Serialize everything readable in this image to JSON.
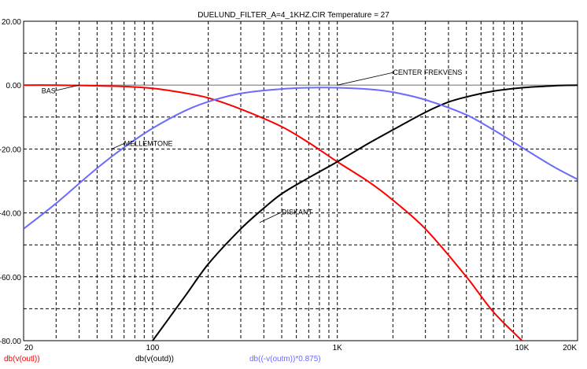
{
  "chart_data": {
    "type": "line",
    "title": "DUELUND_FILTER_A=4_1KHZ.CIR Temperature = 27",
    "x_scale": "log",
    "xlim": [
      20,
      20000
    ],
    "ylim": [
      -80,
      20
    ],
    "x_ticks": [
      {
        "value": 20,
        "label": "20"
      },
      {
        "value": 100,
        "label": "100"
      },
      {
        "value": 1000,
        "label": "1K"
      },
      {
        "value": 10000,
        "label": "10K"
      },
      {
        "value": 20000,
        "label": "20K"
      }
    ],
    "y_ticks": [
      {
        "value": 20,
        "label": "20.00"
      },
      {
        "value": 0,
        "label": "0.00"
      },
      {
        "value": -20,
        "label": "-20.00"
      },
      {
        "value": -40,
        "label": "-40.00"
      },
      {
        "value": -60,
        "label": "-60.00"
      },
      {
        "value": -80,
        "label": "-80.00"
      }
    ],
    "grid": true,
    "series": [
      {
        "name": "db(v(outl))",
        "color": "#ff0000",
        "x": [
          20,
          30,
          40,
          50,
          70,
          100,
          150,
          200,
          300,
          500,
          700,
          1000,
          1500,
          2000,
          3000,
          5000,
          7000,
          10000
        ],
        "y": [
          0,
          0,
          -0.1,
          -0.2,
          -0.4,
          -1,
          -2.5,
          -4,
          -7.5,
          -13,
          -18,
          -24,
          -30.5,
          -36,
          -45,
          -60,
          -71,
          -80
        ]
      },
      {
        "name": "db(v(outd))",
        "color": "#000000",
        "x": [
          100,
          150,
          200,
          300,
          400,
          500,
          700,
          1000,
          1500,
          2000,
          3000,
          4000,
          5000,
          7000,
          10000,
          15000,
          20000
        ],
        "y": [
          -80,
          -66,
          -56,
          -45,
          -38.5,
          -34,
          -29,
          -24,
          -18,
          -14,
          -8.5,
          -5.3,
          -3.7,
          -1.9,
          -0.8,
          -0.2,
          0
        ]
      },
      {
        "name": "db((-v(outm))*0.875)",
        "color": "#6b6bff",
        "x": [
          20,
          30,
          50,
          70,
          100,
          150,
          200,
          300,
          500,
          700,
          1000,
          1500,
          2000,
          3000,
          5000,
          7000,
          10000,
          15000,
          20000
        ],
        "y": [
          -45,
          -37,
          -26,
          -19.5,
          -13.5,
          -8,
          -5.2,
          -2.6,
          -1.2,
          -0.8,
          -0.8,
          -1.3,
          -2.2,
          -4.6,
          -9.3,
          -14,
          -19.5,
          -25.7,
          -29.5
        ]
      }
    ],
    "annotations": [
      {
        "text": "BAS",
        "x": 25,
        "y": -2.5,
        "target_x": 40,
        "target_y": 0
      },
      {
        "text": "CENTER FREKVENS",
        "x": 2000,
        "y": 3.2,
        "target_x": 1000,
        "target_y": 0
      },
      {
        "text": "MELLEMTONE",
        "x": 70,
        "y": -19,
        "target_x": 60,
        "target_y": -20
      },
      {
        "text": "DISKANT",
        "x": 500,
        "y": -40.5,
        "target_x": 380,
        "target_y": -43
      }
    ],
    "legend_placement": "bottom"
  }
}
